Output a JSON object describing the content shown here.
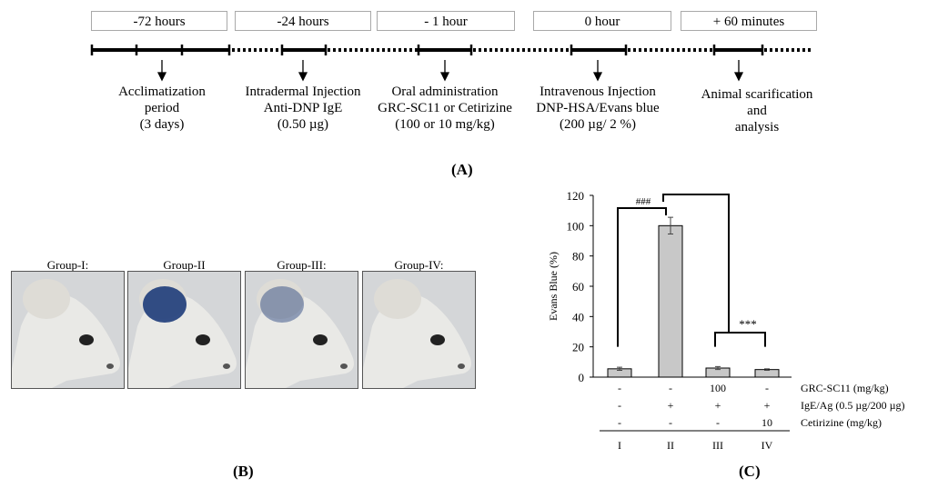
{
  "timeline": {
    "times": [
      "-72 hours",
      "-24 hours",
      "- 1 hour",
      "0 hour",
      "+ 60 minutes"
    ],
    "events": [
      [
        "Acclimatization",
        "period",
        "(3 days)"
      ],
      [
        "Intradermal Injection",
        "Anti-DNP IgE",
        "(0.50 µg)"
      ],
      [
        "Oral administration",
        "GRC-SC11 or Cetirizine",
        "(100 or 10 mg/kg)"
      ],
      [
        "Intravenous  Injection",
        "DNP-HSA/Evans blue",
        "(200 µg/ 2 %)"
      ],
      [
        "Animal scarification",
        "and",
        "analysis"
      ]
    ]
  },
  "panels": {
    "a": "(A)",
    "b": "(B)",
    "c": "(C)"
  },
  "groups": [
    {
      "label": "Group-I:",
      "stain": "none"
    },
    {
      "label": "Group-II",
      "stain": "strong"
    },
    {
      "label": "Group-III:",
      "stain": "weak"
    },
    {
      "label": "Group-IV:",
      "stain": "none"
    }
  ],
  "colors": {
    "bar": "#c8c8c8",
    "evans_blue": "#1e3c7a"
  },
  "chart_data": {
    "type": "bar",
    "ylabel": "Evans Blue (%)",
    "ylim": [
      0,
      120
    ],
    "yticks": [
      0,
      20,
      40,
      60,
      80,
      100,
      120
    ],
    "categories": [
      "I",
      "II",
      "III",
      "IV"
    ],
    "values": [
      5.5,
      100,
      6,
      5
    ],
    "errors": [
      1,
      5.5,
      1,
      0.5
    ],
    "treatment_rows": [
      {
        "label": "GRC-SC11 (mg/kg)",
        "values": [
          "-",
          "-",
          "100",
          "-"
        ]
      },
      {
        "label": "IgE/Ag (0.5 µg/200 µg)",
        "values": [
          "-",
          "+",
          "+",
          "+"
        ]
      },
      {
        "label": "Cetirizine (mg/kg)",
        "values": [
          "-",
          "-",
          "-",
          "10"
        ]
      }
    ],
    "annotations": [
      {
        "text": "###",
        "compare": [
          "I",
          "II"
        ]
      },
      {
        "text": "***",
        "compare": [
          "II",
          "III-IV"
        ]
      }
    ],
    "grid": false
  }
}
